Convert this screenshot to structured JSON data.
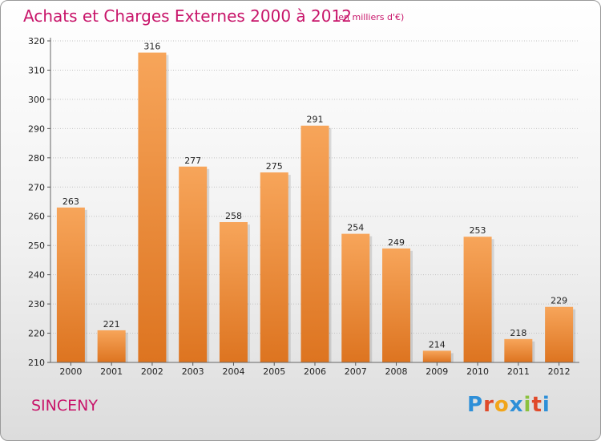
{
  "header": {
    "title": "Achats et Charges Externes 2000 à 2012",
    "subtitle": "(en milliers d'€)"
  },
  "footer": {
    "commune": "SINCENY",
    "logo_letters": [
      "P",
      "r",
      "o",
      "x",
      "i",
      "t",
      "i"
    ],
    "logo_colors": [
      "#2e8fd8",
      "#e04a2a",
      "#f2a51a",
      "#2e8fd8",
      "#8bc13f",
      "#e04a2a",
      "#2e8fd8"
    ]
  },
  "chart_data": {
    "type": "bar",
    "title": "Achats et Charges Externes 2000 à 2012",
    "categories": [
      "2000",
      "2001",
      "2002",
      "2003",
      "2004",
      "2005",
      "2006",
      "2007",
      "2008",
      "2009",
      "2010",
      "2011",
      "2012"
    ],
    "values": [
      263,
      221,
      316,
      277,
      258,
      275,
      291,
      254,
      249,
      214,
      253,
      218,
      229
    ],
    "ylim": [
      210,
      320
    ],
    "yticks": [
      210,
      220,
      230,
      240,
      250,
      260,
      270,
      280,
      290,
      300,
      310,
      320
    ],
    "grid": true,
    "bar_color_top": "#f7a55a",
    "bar_color_bottom": "#dd7420"
  }
}
